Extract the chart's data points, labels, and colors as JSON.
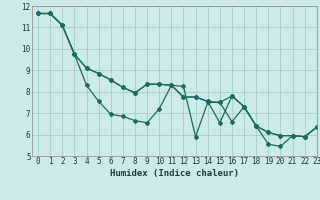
{
  "title": "",
  "xlabel": "Humidex (Indice chaleur)",
  "ylabel": "",
  "bg_color": "#cceaea",
  "grid_color": "#aacccc",
  "line_color": "#1a6b60",
  "xlim": [
    -0.5,
    23
  ],
  "ylim": [
    5,
    12
  ],
  "yticks": [
    5,
    6,
    7,
    8,
    9,
    10,
    11,
    12
  ],
  "xticks": [
    0,
    1,
    2,
    3,
    4,
    5,
    6,
    7,
    8,
    9,
    10,
    11,
    12,
    13,
    14,
    15,
    16,
    17,
    18,
    19,
    20,
    21,
    22,
    23
  ],
  "series": [
    [
      11.65,
      11.65,
      11.1,
      9.75,
      8.3,
      7.55,
      6.95,
      6.85,
      6.65,
      6.55,
      7.2,
      8.3,
      8.25,
      5.9,
      7.5,
      7.5,
      7.8,
      7.3,
      6.4,
      5.55,
      5.45,
      5.95,
      5.9,
      6.35
    ],
    [
      11.65,
      11.65,
      11.1,
      9.75,
      9.1,
      8.85,
      8.55,
      8.2,
      7.95,
      8.35,
      8.35,
      8.3,
      7.75,
      7.75,
      7.55,
      7.5,
      6.6,
      7.3,
      6.4,
      6.1,
      5.95,
      5.95,
      5.9,
      6.35
    ],
    [
      11.65,
      11.65,
      11.1,
      9.75,
      9.1,
      8.85,
      8.55,
      8.2,
      7.95,
      8.35,
      8.35,
      8.3,
      7.75,
      7.75,
      7.55,
      6.55,
      7.8,
      7.3,
      6.4,
      6.1,
      5.95,
      5.95,
      5.9,
      6.35
    ]
  ],
  "xlabel_fontsize": 6.5,
  "tick_fontsize": 5.5,
  "xlabel_color": "#1a4040"
}
